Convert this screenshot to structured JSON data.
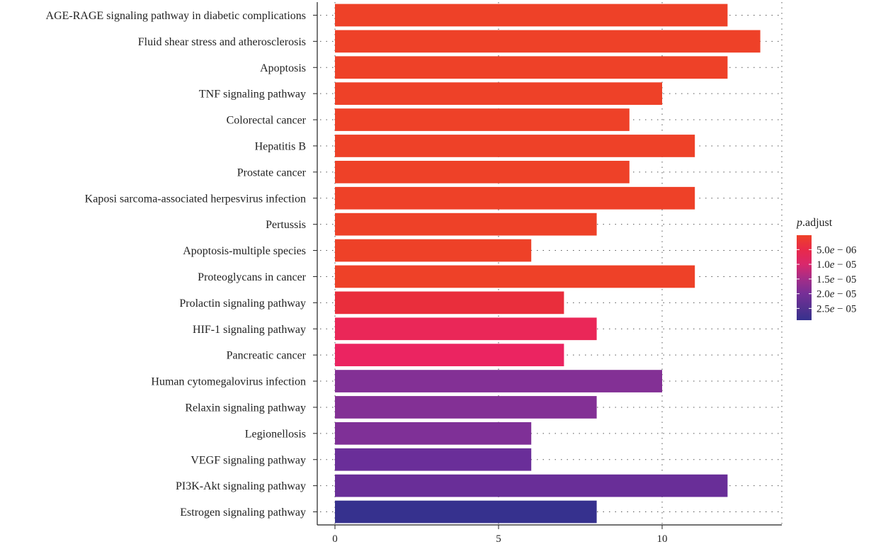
{
  "chart_data": {
    "type": "bar",
    "orientation": "horizontal",
    "categories": [
      "AGE-RAGE signaling pathway in diabetic complications",
      "Fluid shear stress and atherosclerosis",
      "Apoptosis",
      "TNF signaling pathway",
      "Colorectal cancer",
      "Hepatitis B",
      "Prostate cancer",
      "Kaposi sarcoma-associated herpesvirus infection",
      "Pertussis",
      "Apoptosis-multiple species",
      "Proteoglycans in cancer",
      "Prolactin signaling pathway",
      "HIF-1 signaling pathway",
      "Pancreatic cancer",
      "Human cytomegalovirus infection",
      "Relaxin signaling pathway",
      "Legionellosis",
      "VEGF signaling pathway",
      "PI3K-Akt signaling pathway",
      "Estrogen signaling pathway"
    ],
    "values": [
      12,
      13,
      12,
      10,
      9,
      11,
      9,
      11,
      8,
      6,
      11,
      7,
      8,
      7,
      10,
      8,
      6,
      6,
      12,
      8
    ],
    "p_adjust": [
      1e-07,
      1e-07,
      1.2e-07,
      1.5e-07,
      2e-07,
      2.5e-07,
      3e-07,
      4e-07,
      5e-07,
      6e-07,
      7e-07,
      4.5e-06,
      7.5e-06,
      8.5e-06,
      1.9e-05,
      1.9e-05,
      1.95e-05,
      2.1e-05,
      2.15e-05,
      2.9e-05
    ],
    "bar_colors": [
      "#ee4128",
      "#ee4128",
      "#ee4128",
      "#ee4128",
      "#ee4128",
      "#ee4128",
      "#ee4128",
      "#ee4128",
      "#ee4128",
      "#ee4128",
      "#ee4128",
      "#e92e3c",
      "#ea2758",
      "#eb2461",
      "#833095",
      "#833095",
      "#7f3097",
      "#6a2e99",
      "#692e98",
      "#36318e"
    ],
    "xlim": [
      0,
      13.85
    ],
    "x_ticks": [
      0,
      5,
      10
    ],
    "x_tick_labels": [
      "0",
      "5",
      "10"
    ],
    "grid": "dotted",
    "legend": {
      "position": "right",
      "title_italic": "p",
      "title_rest": ".adjust",
      "labels": [
        "5.0e − 06",
        "1.0e − 05",
        "1.5e − 05",
        "2.0e − 05",
        "2.5e − 05"
      ],
      "label_values": [
        5e-06,
        1e-05,
        1.5e-05,
        2e-05,
        2.5e-05
      ],
      "range": [
        1e-07,
        2.9e-05
      ],
      "gradient": [
        {
          "value": 1e-07,
          "color": "#ee4128"
        },
        {
          "value": 5e-06,
          "color": "#e8294a"
        },
        {
          "value": 1e-05,
          "color": "#d9286c"
        },
        {
          "value": 1.5e-05,
          "color": "#a32d88"
        },
        {
          "value": 2e-05,
          "color": "#762f97"
        },
        {
          "value": 2.5e-05,
          "color": "#53318f"
        },
        {
          "value": 2.9e-05,
          "color": "#36318e"
        }
      ]
    }
  }
}
